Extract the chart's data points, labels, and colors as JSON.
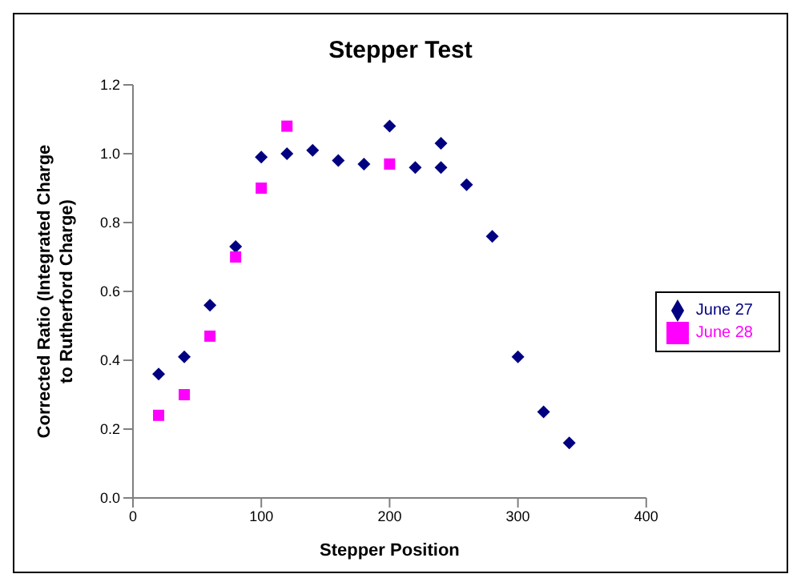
{
  "chart_data": {
    "type": "scatter",
    "title": "Stepper Test",
    "xlabel": "Stepper Position",
    "ylabel": "Corrected Ratio (Integrated Charge to Rutherford Charge)",
    "xlim": [
      0,
      400
    ],
    "xticks": [
      0,
      100,
      200,
      300,
      400
    ],
    "ylim": [
      0,
      1.2
    ],
    "yticks": [
      {
        "value": 0,
        "label": "0.0"
      },
      {
        "value": 0.2,
        "label": "0.2"
      },
      {
        "value": 0.4,
        "label": "0.4"
      },
      {
        "value": 0.6,
        "label": "0.6"
      },
      {
        "value": 0.8,
        "label": "0.8"
      },
      {
        "value": 1,
        "label": "1.0"
      },
      {
        "value": 1.2,
        "label": "1.2"
      }
    ],
    "grid": false,
    "legend": "right",
    "series": [
      {
        "name": "June 27",
        "color": "#000080",
        "marker": "diamond",
        "x": [
          20,
          40,
          60,
          80,
          100,
          120,
          140,
          160,
          180,
          200,
          220,
          240,
          240,
          260,
          280,
          300,
          320,
          340
        ],
        "values": [
          0.36,
          0.41,
          0.56,
          0.73,
          0.99,
          1.0,
          1.01,
          0.98,
          0.97,
          1.08,
          0.96,
          1.03,
          0.96,
          0.91,
          0.76,
          0.41,
          0.25,
          0.16
        ]
      },
      {
        "name": "June 28",
        "color": "#ff00ff",
        "marker": "square",
        "x": [
          20,
          40,
          60,
          80,
          100,
          120,
          200
        ],
        "values": [
          0.24,
          0.3,
          0.47,
          0.7,
          0.9,
          1.08,
          0.97
        ]
      }
    ]
  }
}
